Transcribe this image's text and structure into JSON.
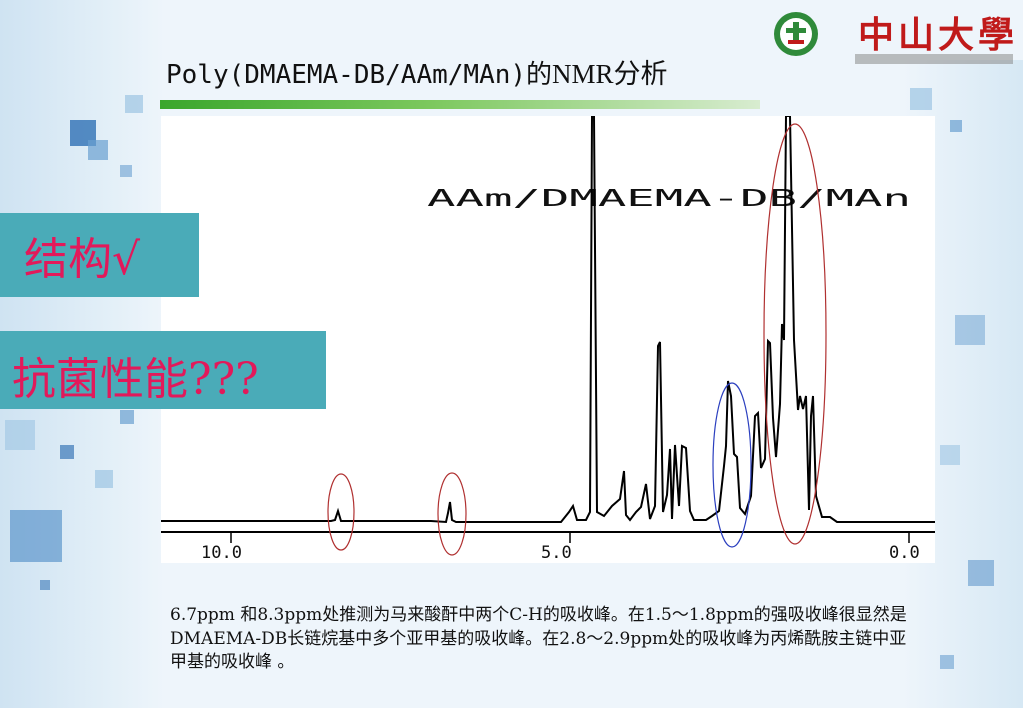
{
  "slide": {
    "title_prefix": "Poly(DMAEMA-DB/AAm/MAn)的",
    "title_bold": "NMR分析",
    "logo_text": "中山大學",
    "box1_text": "结构√",
    "box2_text": "抗菌性能???",
    "spectrum_label": "AAm/DMAEMA-DB/MAn",
    "axis_ticks": [
      "10.0",
      "5.0",
      "0.0"
    ],
    "caption": "6.7ppm 和8.3ppm处推测为马来酸酐中两个C-H的吸收峰。在1.5～1.8ppm的强吸收峰很显然是DMAEMA-DB长链烷基中多个亚甲基的吸收峰。在2.8～2.9ppm处的吸收峰为丙烯酰胺主链中亚甲基的吸收峰 。",
    "colors": {
      "box": "#4aabb8",
      "box_text": "#e2195a",
      "logo": "#c01a1a",
      "ellipse_red": "#b03030",
      "ellipse_blue": "#2b3fbf"
    }
  }
}
